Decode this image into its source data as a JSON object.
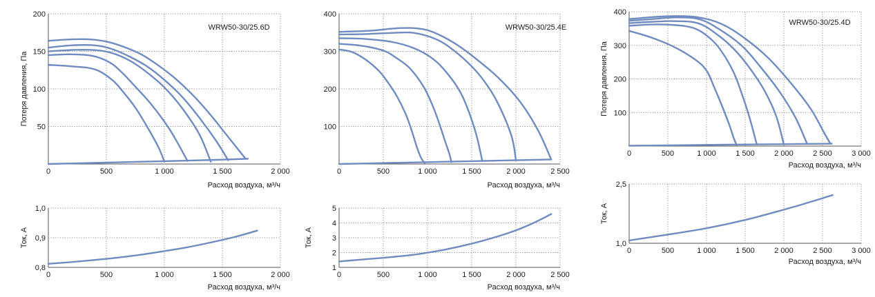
{
  "colors": {
    "curve": "#6f8bbf",
    "grid": "#8e8e8e",
    "axis": "#555555"
  },
  "chart_data": [
    {
      "id": "p1",
      "type": "line",
      "title": "WRW50-30/25.6D",
      "xlabel": "Расход воздуха, м³/ч",
      "ylabel": "Потеря давления, Па",
      "xlim": [
        0,
        2000
      ],
      "ylim": [
        0,
        200
      ],
      "xticks": [
        0,
        500,
        1000,
        1500,
        2000
      ],
      "xtick_labels": [
        "0",
        "500",
        "1 000",
        "1 500",
        "2 000"
      ],
      "yticks": [
        50,
        100,
        150,
        200
      ],
      "ytick_labels": [
        "50",
        "100",
        "150",
        "200"
      ],
      "grid": true,
      "series": [
        {
          "x": [
            0,
            200,
            400,
            550,
            650,
            750,
            850,
            950,
            1000
          ],
          "y": [
            132,
            130,
            126,
            112,
            95,
            75,
            50,
            22,
            3
          ]
        },
        {
          "x": [
            0,
            200,
            380,
            520,
            620,
            750,
            900,
            1050,
            1200
          ],
          "y": [
            145,
            146,
            144,
            136,
            124,
            103,
            77,
            45,
            4
          ]
        },
        {
          "x": [
            0,
            250,
            450,
            600,
            720,
            850,
            1000,
            1150,
            1300,
            1400
          ],
          "y": [
            150,
            152,
            151,
            145,
            136,
            122,
            102,
            75,
            40,
            3
          ]
        },
        {
          "x": [
            0,
            200,
            400,
            550,
            700,
            850,
            1000,
            1150,
            1300,
            1450,
            1550
          ],
          "y": [
            155,
            158,
            158,
            153,
            143,
            130,
            112,
            90,
            62,
            30,
            5
          ]
        },
        {
          "x": [
            0,
            200,
            350,
            500,
            650,
            800,
            950,
            1100,
            1250,
            1400,
            1550,
            1700
          ],
          "y": [
            164,
            166,
            166,
            163,
            156,
            146,
            131,
            113,
            91,
            65,
            36,
            7
          ]
        },
        {
          "x": [
            0,
            400,
            800,
            1200,
            1500,
            1720
          ],
          "y": [
            0,
            1.5,
            3,
            4.5,
            5.8,
            7
          ]
        }
      ]
    },
    {
      "id": "p2",
      "type": "line",
      "title": "WRW50-30/25.4E",
      "xlabel": "Расход воздуха, м³/ч",
      "ylabel": "",
      "xlim": [
        0,
        2500
      ],
      "ylim": [
        0,
        400
      ],
      "xticks": [
        0,
        500,
        1000,
        1500,
        2000,
        2500
      ],
      "xtick_labels": [
        "0",
        "500",
        "1 000",
        "1 500",
        "2 000",
        "2 500"
      ],
      "yticks": [
        100,
        200,
        300,
        400
      ],
      "ytick_labels": [
        "100",
        "200",
        "300",
        "400"
      ],
      "grid": true,
      "series": [
        {
          "x": [
            0,
            150,
            300,
            450,
            550,
            650,
            750,
            820,
            880,
            930,
            970
          ],
          "y": [
            305,
            298,
            278,
            248,
            218,
            182,
            135,
            90,
            45,
            15,
            3
          ]
        },
        {
          "x": [
            0,
            250,
            500,
            650,
            800,
            950,
            1050,
            1130,
            1200,
            1250,
            1270
          ],
          "y": [
            320,
            315,
            302,
            282,
            255,
            208,
            160,
            110,
            60,
            25,
            5
          ]
        },
        {
          "x": [
            0,
            300,
            600,
            850,
            1050,
            1200,
            1350,
            1450,
            1550,
            1620
          ],
          "y": [
            335,
            333,
            325,
            308,
            282,
            248,
            200,
            150,
            80,
            8
          ]
        },
        {
          "x": [
            0,
            300,
            600,
            850,
            1100,
            1300,
            1500,
            1650,
            1800,
            1950,
            2000
          ],
          "y": [
            345,
            346,
            349,
            349,
            332,
            302,
            260,
            218,
            160,
            75,
            10
          ]
        },
        {
          "x": [
            0,
            350,
            700,
            950,
            1150,
            1350,
            1550,
            1800,
            2050,
            2250,
            2400
          ],
          "y": [
            352,
            355,
            362,
            359,
            342,
            315,
            280,
            230,
            165,
            90,
            12
          ]
        },
        {
          "x": [
            0,
            600,
            1200,
            1800,
            2400
          ],
          "y": [
            0,
            3,
            6,
            9,
            12
          ]
        }
      ]
    },
    {
      "id": "p3",
      "type": "line",
      "title": "WRW50-30/25.4D",
      "xlabel": "Расход воздуха, м³/ч",
      "ylabel": "Потеря давления, Па",
      "xlim": [
        0,
        3000
      ],
      "ylim": [
        0,
        400
      ],
      "xticks": [
        0,
        500,
        1000,
        1500,
        2000,
        2500,
        3000
      ],
      "xtick_labels": [
        "0",
        "500",
        "1 000",
        "1 500",
        "2 000",
        "2 500",
        "3 000"
      ],
      "yticks": [
        100,
        200,
        300,
        400
      ],
      "ytick_labels": [
        "100",
        "200",
        "300",
        "400"
      ],
      "grid": true,
      "series": [
        {
          "x": [
            0,
            300,
            600,
            850,
            1000,
            1100,
            1200,
            1300,
            1350,
            1390
          ],
          "y": [
            343,
            322,
            293,
            258,
            225,
            175,
            120,
            60,
            25,
            3
          ]
        },
        {
          "x": [
            0,
            300,
            600,
            850,
            1050,
            1200,
            1350,
            1450,
            1550,
            1650
          ],
          "y": [
            358,
            362,
            360,
            350,
            320,
            280,
            220,
            160,
            90,
            5
          ]
        },
        {
          "x": [
            0,
            300,
            600,
            900,
            1150,
            1350,
            1550,
            1750,
            1900,
            2000
          ],
          "y": [
            366,
            370,
            372,
            365,
            330,
            290,
            235,
            165,
            90,
            5
          ]
        },
        {
          "x": [
            0,
            300,
            600,
            900,
            1150,
            1450,
            1700,
            1950,
            2150,
            2300
          ],
          "y": [
            373,
            378,
            383,
            378,
            350,
            300,
            235,
            160,
            85,
            7
          ]
        },
        {
          "x": [
            0,
            300,
            600,
            900,
            1200,
            1500,
            1800,
            2100,
            2350,
            2520,
            2600
          ],
          "y": [
            378,
            384,
            387,
            383,
            363,
            320,
            262,
            185,
            110,
            40,
            8
          ]
        },
        {
          "x": [
            0,
            800,
            1600,
            2620
          ],
          "y": [
            1,
            3,
            5,
            7
          ]
        }
      ]
    },
    {
      "id": "c1",
      "type": "line",
      "title": "",
      "xlabel": "Расход воздуха, м³/ч",
      "ylabel": "Ток, А",
      "xlim": [
        0,
        2000
      ],
      "ylim": [
        0.8,
        1.0
      ],
      "xticks": [
        0,
        500,
        1000,
        1500,
        2000
      ],
      "xtick_labels": [
        "0",
        "500",
        "1 000",
        "1 500",
        "2 000"
      ],
      "yticks": [
        0.8,
        0.9,
        1.0
      ],
      "ytick_labels": [
        "0,8",
        "0,9",
        "1,0"
      ],
      "grid": true,
      "series": [
        {
          "x": [
            0,
            200,
            400,
            600,
            800,
            1000,
            1200,
            1400,
            1600,
            1800
          ],
          "y": [
            0.812,
            0.818,
            0.825,
            0.833,
            0.843,
            0.855,
            0.868,
            0.884,
            0.902,
            0.924
          ]
        }
      ]
    },
    {
      "id": "c2",
      "type": "line",
      "title": "",
      "xlabel": "Расход воздуха, м³/ч",
      "ylabel": "Ток, А",
      "xlim": [
        0,
        2500
      ],
      "ylim": [
        1,
        5
      ],
      "xticks": [
        0,
        500,
        1000,
        1500,
        2000,
        2500
      ],
      "xtick_labels": [
        "0",
        "500",
        "1 000",
        "1 500",
        "2 000",
        "2 500"
      ],
      "yticks": [
        1,
        2,
        3,
        4,
        5
      ],
      "ytick_labels": [
        "1",
        "2",
        "3",
        "4",
        "5"
      ],
      "grid": true,
      "series": [
        {
          "x": [
            0,
            300,
            600,
            900,
            1200,
            1500,
            1800,
            2000,
            2200,
            2400
          ],
          "y": [
            1.4,
            1.55,
            1.7,
            1.9,
            2.2,
            2.6,
            3.1,
            3.5,
            4.0,
            4.6
          ]
        }
      ]
    },
    {
      "id": "c3",
      "type": "line",
      "title": "",
      "xlabel": "Расход воздуха, м³/ч",
      "ylabel": "Ток, А",
      "xlim": [
        0,
        3000
      ],
      "ylim": [
        1.0,
        2.5
      ],
      "xticks": [
        0,
        500,
        1000,
        1500,
        2000,
        2500,
        3000
      ],
      "xtick_labels": [
        "0",
        "500",
        "1 000",
        "1 500",
        "2 000",
        "2 500",
        "3 000"
      ],
      "yticks": [
        1.0,
        2.5
      ],
      "ytick_labels": [
        "1,0",
        "2,5"
      ],
      "grid": true,
      "series": [
        {
          "x": [
            0,
            500,
            1000,
            1500,
            2000,
            2300,
            2630
          ],
          "y": [
            1.07,
            1.22,
            1.38,
            1.59,
            1.85,
            2.02,
            2.22
          ]
        }
      ]
    }
  ]
}
